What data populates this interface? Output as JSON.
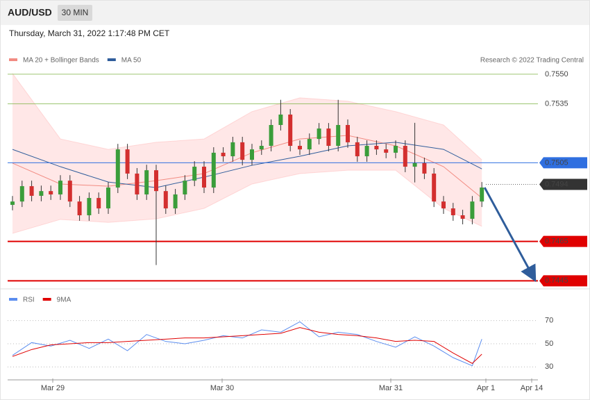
{
  "header": {
    "symbol": "AUD/USD",
    "timeframe": "30 MIN",
    "datetime": "Thursday, March 31, 2022 1:17:48 PM CET"
  },
  "chart_data": [
    {
      "type": "candlestick",
      "legend": [
        {
          "name": "MA 20 + Bollinger Bands",
          "color": "#f28b82"
        },
        {
          "name": "MA 50",
          "color": "#2f5d9b"
        }
      ],
      "credit": "Research © 2022 Trading Central",
      "up_color": "#3a9d3a",
      "down_color": "#d32f2f",
      "open": [
        0.74836,
        0.74853,
        0.74931,
        0.74882,
        0.74906,
        0.74889,
        0.74959,
        0.74853,
        0.74783,
        0.74871,
        0.74818,
        0.74924,
        0.75118,
        0.74995,
        0.74889,
        0.75012,
        0.74906,
        0.74818,
        0.74889,
        0.74959,
        0.7503,
        0.74924,
        0.75101,
        0.75083,
        0.75154,
        0.75065,
        0.75118,
        0.75136,
        0.75242,
        0.75295,
        0.75136,
        0.75118,
        0.75171,
        0.75224,
        0.75136,
        0.75242,
        0.75154,
        0.75083,
        0.75136,
        0.75118,
        0.75101,
        0.75136,
        0.7503,
        0.75048,
        0.74995,
        0.74853,
        0.74818,
        0.74783,
        0.74765,
        0.74853
      ],
      "high": [
        0.74881,
        0.74959,
        0.74959,
        0.74934,
        0.74934,
        0.74987,
        0.74987,
        0.74881,
        0.74899,
        0.74899,
        0.74952,
        0.75146,
        0.75146,
        0.75023,
        0.7504,
        0.7504,
        0.74934,
        0.74917,
        0.74987,
        0.75058,
        0.75058,
        0.75129,
        0.75129,
        0.75182,
        0.75182,
        0.75146,
        0.75164,
        0.7527,
        0.7537,
        0.75323,
        0.75164,
        0.75199,
        0.75252,
        0.75252,
        0.7537,
        0.7527,
        0.75182,
        0.75164,
        0.75164,
        0.75146,
        0.75164,
        0.75164,
        0.75253,
        0.75076,
        0.75023,
        0.74881,
        0.74846,
        0.74811,
        0.74881,
        0.74952
      ],
      "low": [
        0.74808,
        0.74825,
        0.74854,
        0.74854,
        0.74861,
        0.74861,
        0.74825,
        0.74755,
        0.74755,
        0.7479,
        0.7479,
        0.74896,
        0.74967,
        0.74861,
        0.74861,
        0.7453,
        0.7479,
        0.7479,
        0.74861,
        0.74931,
        0.74896,
        0.74896,
        0.75055,
        0.75055,
        0.75037,
        0.75037,
        0.7509,
        0.75108,
        0.75214,
        0.75108,
        0.7509,
        0.7509,
        0.75143,
        0.75108,
        0.75108,
        0.75126,
        0.75055,
        0.75055,
        0.7509,
        0.75073,
        0.75073,
        0.75002,
        0.7495,
        0.74967,
        0.74825,
        0.7479,
        0.74755,
        0.74737,
        0.74737,
        0.74825
      ],
      "close": [
        0.74853,
        0.74931,
        0.74882,
        0.74906,
        0.74889,
        0.74959,
        0.74853,
        0.74783,
        0.74871,
        0.74818,
        0.74924,
        0.75118,
        0.74995,
        0.74889,
        0.75012,
        0.74906,
        0.74818,
        0.74889,
        0.74959,
        0.7503,
        0.74924,
        0.75101,
        0.75083,
        0.75154,
        0.75065,
        0.75118,
        0.75136,
        0.75242,
        0.75295,
        0.75136,
        0.75118,
        0.75171,
        0.75224,
        0.75136,
        0.75242,
        0.75154,
        0.75083,
        0.75136,
        0.75118,
        0.75101,
        0.75136,
        0.7503,
        0.75048,
        0.74995,
        0.74853,
        0.74818,
        0.74783,
        0.74765,
        0.74853,
        0.74924
      ],
      "overlay_x": [
        0,
        5,
        10,
        15,
        20,
        25,
        30,
        35,
        40,
        45,
        49
      ],
      "bollinger_upper": [
        0.75504,
        0.75171,
        0.75118,
        0.75154,
        0.75171,
        0.7531,
        0.7538,
        0.75363,
        0.7531,
        0.75242,
        0.75065
      ],
      "bollinger_lower": [
        0.74691,
        0.74762,
        0.74747,
        0.74765,
        0.74818,
        0.74942,
        0.74995,
        0.75012,
        0.75012,
        0.74818,
        0.74727
      ],
      "ma20": [
        0.75048,
        0.74942,
        0.74931,
        0.74959,
        0.74995,
        0.75101,
        0.75171,
        0.75189,
        0.75136,
        0.7503,
        0.74871
      ],
      "ma50": [
        0.75118,
        0.7503,
        0.74952,
        0.74924,
        0.74977,
        0.75037,
        0.75083,
        0.75136,
        0.75154,
        0.75118,
        0.75019
      ],
      "ylim": [
        0.7443,
        0.75542
      ],
      "levels": [
        {
          "value": 0.755,
          "label": "0.7550",
          "color": "#7cb342",
          "box": false
        },
        {
          "value": 0.7535,
          "label": "0.7535",
          "color": "#7cb342",
          "box": false
        },
        {
          "value": 0.7505,
          "label": "0.7505",
          "color": "#2f6fe0",
          "box": true
        },
        {
          "value": 0.7494,
          "label": "0.7494",
          "color": "#333333",
          "box": true,
          "dotted": true
        },
        {
          "value": 0.7465,
          "label": "0.7465",
          "color": "#e00000",
          "box": true
        },
        {
          "value": 0.7445,
          "label": "0.7445",
          "color": "#e00000",
          "box": true
        }
      ],
      "x_labels": [
        "Mar 29",
        "Mar 30",
        "Mar 31",
        "Apr 1",
        "Apr 14"
      ]
    },
    {
      "type": "line",
      "x": [
        0,
        2,
        4,
        6,
        8,
        10,
        12,
        14,
        16,
        18,
        20,
        22,
        24,
        26,
        28,
        30,
        32,
        34,
        36,
        38,
        40,
        42,
        44,
        46,
        48,
        49
      ],
      "series": [
        {
          "name": "RSI",
          "color": "#5b8def",
          "values": [
            40,
            51,
            48,
            53,
            46,
            54,
            44,
            58,
            52,
            50,
            53,
            57,
            55,
            62,
            60,
            69,
            56,
            60,
            58,
            52,
            47,
            56,
            48,
            38,
            31,
            54
          ]
        },
        {
          "name": "9MA",
          "color": "#e00000",
          "values": [
            39,
            45,
            49,
            50,
            51,
            51,
            52,
            53,
            54,
            55,
            55,
            56,
            57,
            58,
            59,
            64,
            60,
            58,
            57,
            55,
            52,
            53,
            52,
            42,
            33,
            41
          ]
        }
      ],
      "ylim": [
        20,
        95
      ],
      "yticks": [
        30,
        50,
        70
      ]
    }
  ]
}
